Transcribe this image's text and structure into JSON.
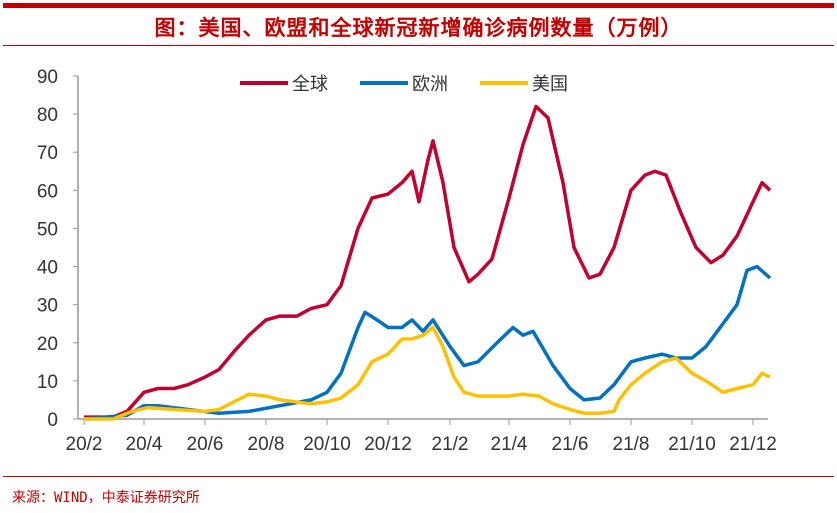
{
  "title": "图：美国、欧盟和全球新冠新增确诊病例数量（万例）",
  "source": "来源：WIND，中泰证券研究所",
  "chart_data": {
    "type": "line",
    "title": "图：美国、欧盟和全球新冠新增确诊病例数量（万例）",
    "xlabel": "",
    "ylabel": "",
    "ylim": [
      0,
      90
    ],
    "yticks": [
      "0",
      "10",
      "20",
      "30",
      "40",
      "50",
      "60",
      "70",
      "80",
      "90"
    ],
    "xticks": [
      {
        "label": "20/2",
        "date": "2020-02-01"
      },
      {
        "label": "20/4",
        "date": "2020-04-01"
      },
      {
        "label": "20/6",
        "date": "2020-06-01"
      },
      {
        "label": "20/8",
        "date": "2020-08-01"
      },
      {
        "label": "20/10",
        "date": "2020-10-01"
      },
      {
        "label": "20/12",
        "date": "2020-12-01"
      },
      {
        "label": "21/2",
        "date": "2021-02-01"
      },
      {
        "label": "21/4",
        "date": "2021-04-01"
      },
      {
        "label": "21/6",
        "date": "2021-06-01"
      },
      {
        "label": "21/8",
        "date": "2021-08-01"
      },
      {
        "label": "21/10",
        "date": "2021-10-01"
      },
      {
        "label": "21/12",
        "date": "2021-12-01"
      }
    ],
    "grid": false,
    "legend_position": "top",
    "series": [
      {
        "name": "全球",
        "color": "#C0002F",
        "points": [
          [
            "2020-02-01",
            0.5
          ],
          [
            "2020-03-01",
            0.5
          ],
          [
            "2020-03-15",
            2
          ],
          [
            "2020-04-01",
            7
          ],
          [
            "2020-04-15",
            8
          ],
          [
            "2020-05-01",
            8
          ],
          [
            "2020-05-15",
            9
          ],
          [
            "2020-06-01",
            11
          ],
          [
            "2020-06-15",
            13
          ],
          [
            "2020-07-01",
            18
          ],
          [
            "2020-07-15",
            22
          ],
          [
            "2020-08-01",
            26
          ],
          [
            "2020-08-15",
            27
          ],
          [
            "2020-09-01",
            27
          ],
          [
            "2020-09-15",
            29
          ],
          [
            "2020-10-01",
            30
          ],
          [
            "2020-10-15",
            35
          ],
          [
            "2020-11-01",
            50
          ],
          [
            "2020-11-15",
            58
          ],
          [
            "2020-12-01",
            59
          ],
          [
            "2020-12-15",
            62
          ],
          [
            "2020-12-25",
            65
          ],
          [
            "2021-01-01",
            57
          ],
          [
            "2021-01-10",
            68
          ],
          [
            "2021-01-15",
            73
          ],
          [
            "2021-01-25",
            62
          ],
          [
            "2021-02-05",
            45
          ],
          [
            "2021-02-20",
            36
          ],
          [
            "2021-03-01",
            38
          ],
          [
            "2021-03-15",
            42
          ],
          [
            "2021-04-01",
            58
          ],
          [
            "2021-04-15",
            72
          ],
          [
            "2021-04-28",
            82
          ],
          [
            "2021-05-10",
            79
          ],
          [
            "2021-05-25",
            62
          ],
          [
            "2021-06-05",
            45
          ],
          [
            "2021-06-20",
            37
          ],
          [
            "2021-07-01",
            38
          ],
          [
            "2021-07-15",
            45
          ],
          [
            "2021-08-01",
            60
          ],
          [
            "2021-08-15",
            64
          ],
          [
            "2021-08-25",
            65
          ],
          [
            "2021-09-05",
            64
          ],
          [
            "2021-09-20",
            54
          ],
          [
            "2021-10-05",
            45
          ],
          [
            "2021-10-20",
            41
          ],
          [
            "2021-11-01",
            43
          ],
          [
            "2021-11-15",
            48
          ],
          [
            "2021-12-01",
            57
          ],
          [
            "2021-12-10",
            62
          ],
          [
            "2021-12-18",
            60
          ]
        ]
      },
      {
        "name": "欧洲",
        "color": "#0070C0",
        "points": [
          [
            "2020-02-01",
            0
          ],
          [
            "2020-03-15",
            1
          ],
          [
            "2020-04-01",
            3.5
          ],
          [
            "2020-04-15",
            3.5
          ],
          [
            "2020-05-15",
            2.5
          ],
          [
            "2020-06-15",
            1.5
          ],
          [
            "2020-07-15",
            2
          ],
          [
            "2020-08-15",
            3.5
          ],
          [
            "2020-09-15",
            5
          ],
          [
            "2020-10-01",
            7
          ],
          [
            "2020-10-15",
            12
          ],
          [
            "2020-11-01",
            24
          ],
          [
            "2020-11-08",
            28
          ],
          [
            "2020-11-20",
            26
          ],
          [
            "2020-12-01",
            24
          ],
          [
            "2020-12-15",
            24
          ],
          [
            "2020-12-25",
            26
          ],
          [
            "2021-01-05",
            23
          ],
          [
            "2021-01-15",
            26
          ],
          [
            "2021-02-01",
            19
          ],
          [
            "2021-02-15",
            14
          ],
          [
            "2021-03-01",
            15
          ],
          [
            "2021-03-20",
            20
          ],
          [
            "2021-04-05",
            24
          ],
          [
            "2021-04-15",
            22
          ],
          [
            "2021-04-25",
            23
          ],
          [
            "2021-05-15",
            14
          ],
          [
            "2021-06-01",
            8
          ],
          [
            "2021-06-15",
            5
          ],
          [
            "2021-07-01",
            5.5
          ],
          [
            "2021-07-15",
            9
          ],
          [
            "2021-08-01",
            15
          ],
          [
            "2021-08-15",
            16
          ],
          [
            "2021-09-01",
            17
          ],
          [
            "2021-09-15",
            16
          ],
          [
            "2021-10-01",
            16
          ],
          [
            "2021-10-15",
            19
          ],
          [
            "2021-11-01",
            25
          ],
          [
            "2021-11-15",
            30
          ],
          [
            "2021-11-25",
            39
          ],
          [
            "2021-12-05",
            40
          ],
          [
            "2021-12-18",
            37
          ]
        ]
      },
      {
        "name": "美国",
        "color": "#FFC000",
        "points": [
          [
            "2020-02-01",
            0
          ],
          [
            "2020-03-01",
            0
          ],
          [
            "2020-03-20",
            2
          ],
          [
            "2020-04-05",
            3
          ],
          [
            "2020-05-01",
            2.5
          ],
          [
            "2020-06-01",
            2
          ],
          [
            "2020-06-15",
            2.5
          ],
          [
            "2020-07-15",
            6.5
          ],
          [
            "2020-08-01",
            6
          ],
          [
            "2020-08-15",
            5
          ],
          [
            "2020-09-15",
            4
          ],
          [
            "2020-10-01",
            4.5
          ],
          [
            "2020-10-15",
            5.5
          ],
          [
            "2020-11-01",
            9
          ],
          [
            "2020-11-15",
            15
          ],
          [
            "2020-12-01",
            17
          ],
          [
            "2020-12-15",
            21
          ],
          [
            "2020-12-25",
            21
          ],
          [
            "2021-01-05",
            22
          ],
          [
            "2021-01-15",
            24
          ],
          [
            "2021-01-25",
            19
          ],
          [
            "2021-02-05",
            11
          ],
          [
            "2021-02-15",
            7
          ],
          [
            "2021-03-01",
            6
          ],
          [
            "2021-04-01",
            6
          ],
          [
            "2021-04-15",
            6.5
          ],
          [
            "2021-05-01",
            6
          ],
          [
            "2021-05-15",
            4
          ],
          [
            "2021-06-01",
            2.5
          ],
          [
            "2021-06-15",
            1.5
          ],
          [
            "2021-07-01",
            1.5
          ],
          [
            "2021-07-15",
            2
          ],
          [
            "2021-07-20",
            5
          ],
          [
            "2021-08-01",
            9
          ],
          [
            "2021-08-15",
            12
          ],
          [
            "2021-09-01",
            15
          ],
          [
            "2021-09-15",
            16
          ],
          [
            "2021-10-01",
            12
          ],
          [
            "2021-10-15",
            10
          ],
          [
            "2021-11-01",
            7
          ],
          [
            "2021-11-15",
            8
          ],
          [
            "2021-12-01",
            9
          ],
          [
            "2021-12-10",
            12
          ],
          [
            "2021-12-18",
            11
          ]
        ]
      }
    ]
  }
}
